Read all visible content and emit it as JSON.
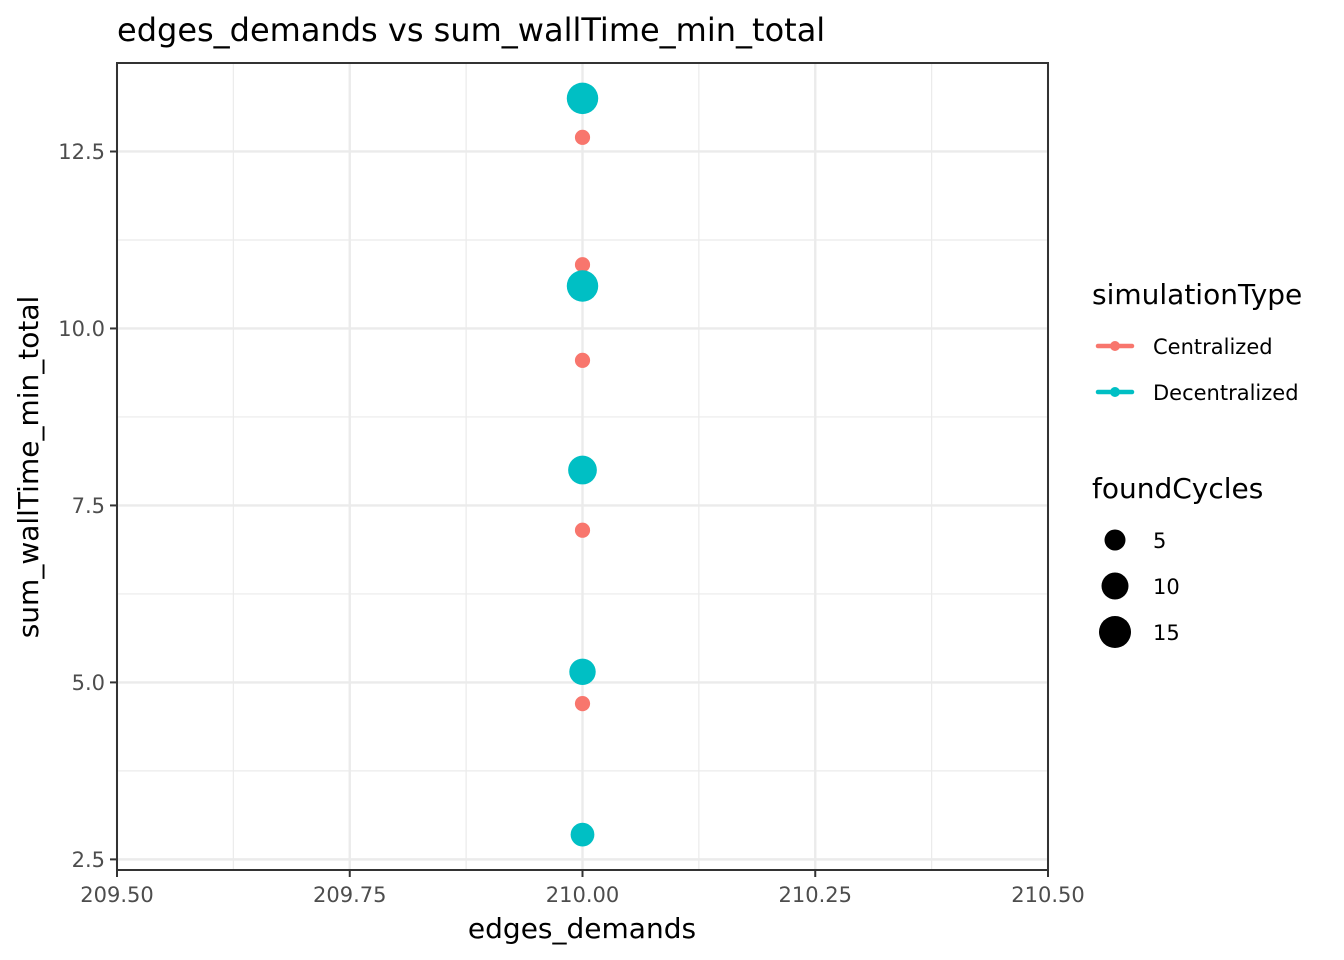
{
  "chart_data": {
    "type": "scatter",
    "title": "edges_demands  vs  sum_wallTime_min_total",
    "xlabel": "edges_demands",
    "ylabel": "sum_wallTime_min_total",
    "xlim": [
      209.5,
      210.5
    ],
    "ylim": [
      2.35,
      13.75
    ],
    "x_ticks": [
      209.5,
      209.75,
      210.0,
      210.25,
      210.5
    ],
    "x_tick_labels": [
      "209.50",
      "209.75",
      "210.00",
      "210.25",
      "210.50"
    ],
    "y_ticks": [
      2.5,
      5.0,
      7.5,
      10.0,
      12.5
    ],
    "y_tick_labels": [
      "2.5",
      "5.0",
      "7.5",
      "10.0",
      "12.5"
    ],
    "grid": true,
    "legend_position": "right",
    "series": [
      {
        "name": "Centralized",
        "color": "#F8766D",
        "points": [
          {
            "x": 210.0,
            "y": 12.7,
            "size": 1
          },
          {
            "x": 210.0,
            "y": 10.9,
            "size": 1
          },
          {
            "x": 210.0,
            "y": 9.55,
            "size": 1
          },
          {
            "x": 210.0,
            "y": 7.15,
            "size": 1
          },
          {
            "x": 210.0,
            "y": 4.7,
            "size": 1
          }
        ]
      },
      {
        "name": "Decentralized",
        "color": "#00BFC4",
        "points": [
          {
            "x": 210.0,
            "y": 13.25,
            "size": 17
          },
          {
            "x": 210.0,
            "y": 10.6,
            "size": 17
          },
          {
            "x": 210.0,
            "y": 8.0,
            "size": 13
          },
          {
            "x": 210.0,
            "y": 5.15,
            "size": 10
          },
          {
            "x": 210.0,
            "y": 2.85,
            "size": 7
          }
        ]
      }
    ],
    "color_legend": {
      "title": "simulationType",
      "items": [
        {
          "label": "Centralized",
          "color": "#F8766D"
        },
        {
          "label": "Decentralized",
          "color": "#00BFC4"
        }
      ]
    },
    "size_legend": {
      "title": "foundCycles",
      "items": [
        {
          "label": "5",
          "value": 5
        },
        {
          "label": "10",
          "value": 10
        },
        {
          "label": "15",
          "value": 15
        }
      ]
    }
  }
}
